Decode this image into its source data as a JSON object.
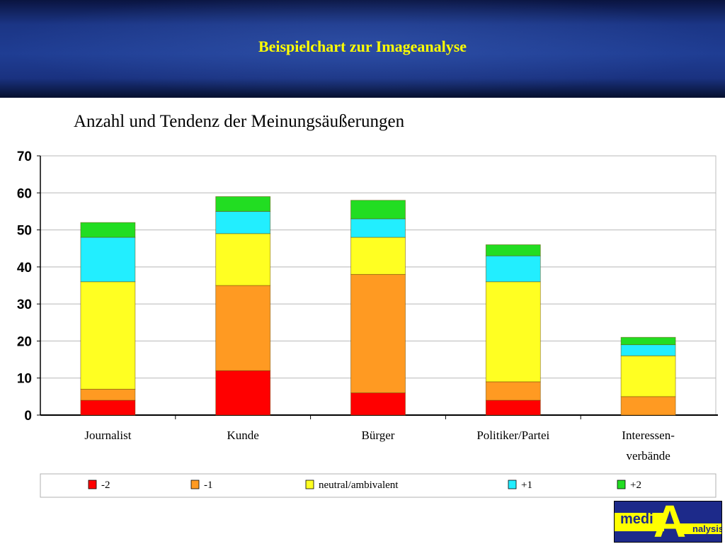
{
  "header": {
    "title": "Beispielchart zur Imageanalyse"
  },
  "chart_data": {
    "type": "bar",
    "stacked": true,
    "title": "Anzahl und Tendenz der Meinungsäußerungen",
    "categories": [
      "Journalist",
      "Kunde",
      "Bürger",
      "Politiker/Partei",
      "Interessen-verbände"
    ],
    "category_lines": [
      [
        "Journalist"
      ],
      [
        "Kunde"
      ],
      [
        "Bürger"
      ],
      [
        "Politiker/Partei"
      ],
      [
        "Interessen-",
        "verbände"
      ]
    ],
    "series": [
      {
        "name": "-2",
        "color": "#ff0000",
        "values": [
          4,
          12,
          6,
          4,
          0
        ]
      },
      {
        "name": "-1",
        "color": "#ff9a22",
        "values": [
          3,
          23,
          32,
          5,
          5
        ]
      },
      {
        "name": "neutral/ambivalent",
        "color": "#ffff22",
        "values": [
          29,
          14,
          10,
          27,
          11
        ]
      },
      {
        "name": "+1",
        "color": "#22eeff",
        "values": [
          12,
          6,
          5,
          7,
          3
        ]
      },
      {
        "name": "+2",
        "color": "#22dd22",
        "values": [
          4,
          4,
          5,
          3,
          2
        ]
      }
    ],
    "ylim": [
      0,
      70
    ],
    "yticks": [
      0,
      10,
      20,
      30,
      40,
      50,
      60,
      70
    ],
    "grid": true,
    "legend_position": "bottom"
  },
  "logo": {
    "text": "mediAnalysis",
    "colors": {
      "background": "#1d2a8a",
      "accent": "#ffff00"
    }
  }
}
